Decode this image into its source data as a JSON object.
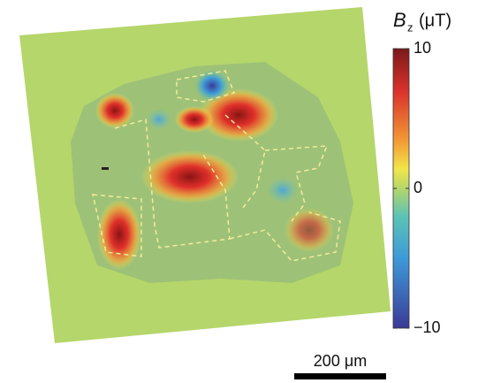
{
  "colorbar": {
    "label": "B",
    "subscript": "z",
    "unit": "(μT)",
    "ticks": [
      10,
      0,
      {
        "value": -10,
        "label": "−10"
      }
    ]
  },
  "scale_bar": {
    "label": "200 μm"
  }
}
